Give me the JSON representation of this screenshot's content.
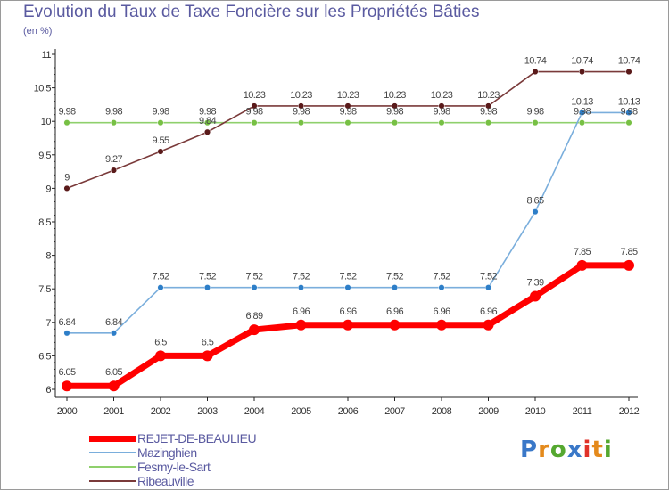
{
  "title": "Evolution du Taux de Taxe Foncière sur les Propriétés Bâties",
  "subtitle": "(en %)",
  "logo": {
    "text": "Proxiti",
    "colors": [
      "#3a78c8",
      "#e48a1c",
      "#55a830",
      "#3a78c8",
      "#e0322a",
      "#e48a1c",
      "#55a830"
    ]
  },
  "chart_data": {
    "type": "line",
    "title": "Evolution du Taux de Taxe Foncière sur les Propriétés Bâties",
    "ylabel": "(en %)",
    "xlabel": "",
    "ylim": [
      6,
      11
    ],
    "grid": false,
    "legend": "bottom-left",
    "x": [
      "2000",
      "2001",
      "2002",
      "2003",
      "2004",
      "2005",
      "2006",
      "2007",
      "2008",
      "2009",
      "2010",
      "2011",
      "2012"
    ],
    "yticks": [
      "6",
      "6.5",
      "7",
      "7.5",
      "8",
      "8.5",
      "9",
      "9.5",
      "10",
      "10.5",
      "11"
    ],
    "series": [
      {
        "name": "Fesmy-le-Sart",
        "color": "#8fd06c",
        "marker": "#77c044",
        "width": 1.6,
        "values": [
          9.98,
          9.98,
          9.98,
          9.98,
          9.98,
          9.98,
          9.98,
          9.98,
          9.98,
          9.98,
          9.98,
          9.98,
          9.98
        ],
        "labels": [
          "9.98",
          "9.98",
          "9.98",
          "9.98",
          "9.98",
          "9.98",
          "9.98",
          "9.98",
          "9.98",
          "9.98",
          "9.98",
          "9.98",
          "9.98"
        ]
      },
      {
        "name": "Mazinghien",
        "color": "#7aaedc",
        "marker": "#2d7ec8",
        "width": 1.6,
        "values": [
          6.84,
          6.84,
          7.52,
          7.52,
          7.52,
          7.52,
          7.52,
          7.52,
          7.52,
          7.52,
          8.65,
          10.13,
          10.13
        ],
        "labels": [
          "6.84",
          "6.84",
          "7.52",
          "7.52",
          "7.52",
          "7.52",
          "7.52",
          "7.52",
          "7.52",
          "7.52",
          "8.65",
          "10.13",
          "10.13"
        ]
      },
      {
        "name": "Ribeauville",
        "color": "#7a3a3a",
        "marker": "#5a1a1a",
        "width": 1.6,
        "values": [
          9.0,
          9.27,
          9.55,
          9.84,
          10.23,
          10.23,
          10.23,
          10.23,
          10.23,
          10.23,
          10.74,
          10.74,
          10.74
        ],
        "labels": [
          "9",
          "9.27",
          "9.55",
          "9.84",
          "10.23",
          "10.23",
          "10.23",
          "10.23",
          "10.23",
          "10.23",
          "10.74",
          "10.74",
          "10.74"
        ]
      },
      {
        "name": "REJET-DE-BEAULIEU",
        "color": "#ff0000",
        "marker": "#ff0000",
        "width": 7,
        "values": [
          6.05,
          6.05,
          6.5,
          6.5,
          6.89,
          6.96,
          6.96,
          6.96,
          6.96,
          6.96,
          7.39,
          7.85,
          7.85
        ],
        "labels": [
          "6.05",
          "6.05",
          "6.5",
          "6.5",
          "6.89",
          "6.96",
          "6.96",
          "6.96",
          "6.96",
          "6.96",
          "7.39",
          "7.85",
          "7.85"
        ]
      }
    ],
    "legend_entries": [
      {
        "name": "REJET-DE-BEAULIEU",
        "color": "#ff0000",
        "thick": true
      },
      {
        "name": "Mazinghien",
        "color": "#7aaedc",
        "thick": false
      },
      {
        "name": "Fesmy-le-Sart",
        "color": "#8fd06c",
        "thick": false
      },
      {
        "name": "Ribeauville",
        "color": "#7a3a3a",
        "thick": false
      }
    ]
  }
}
